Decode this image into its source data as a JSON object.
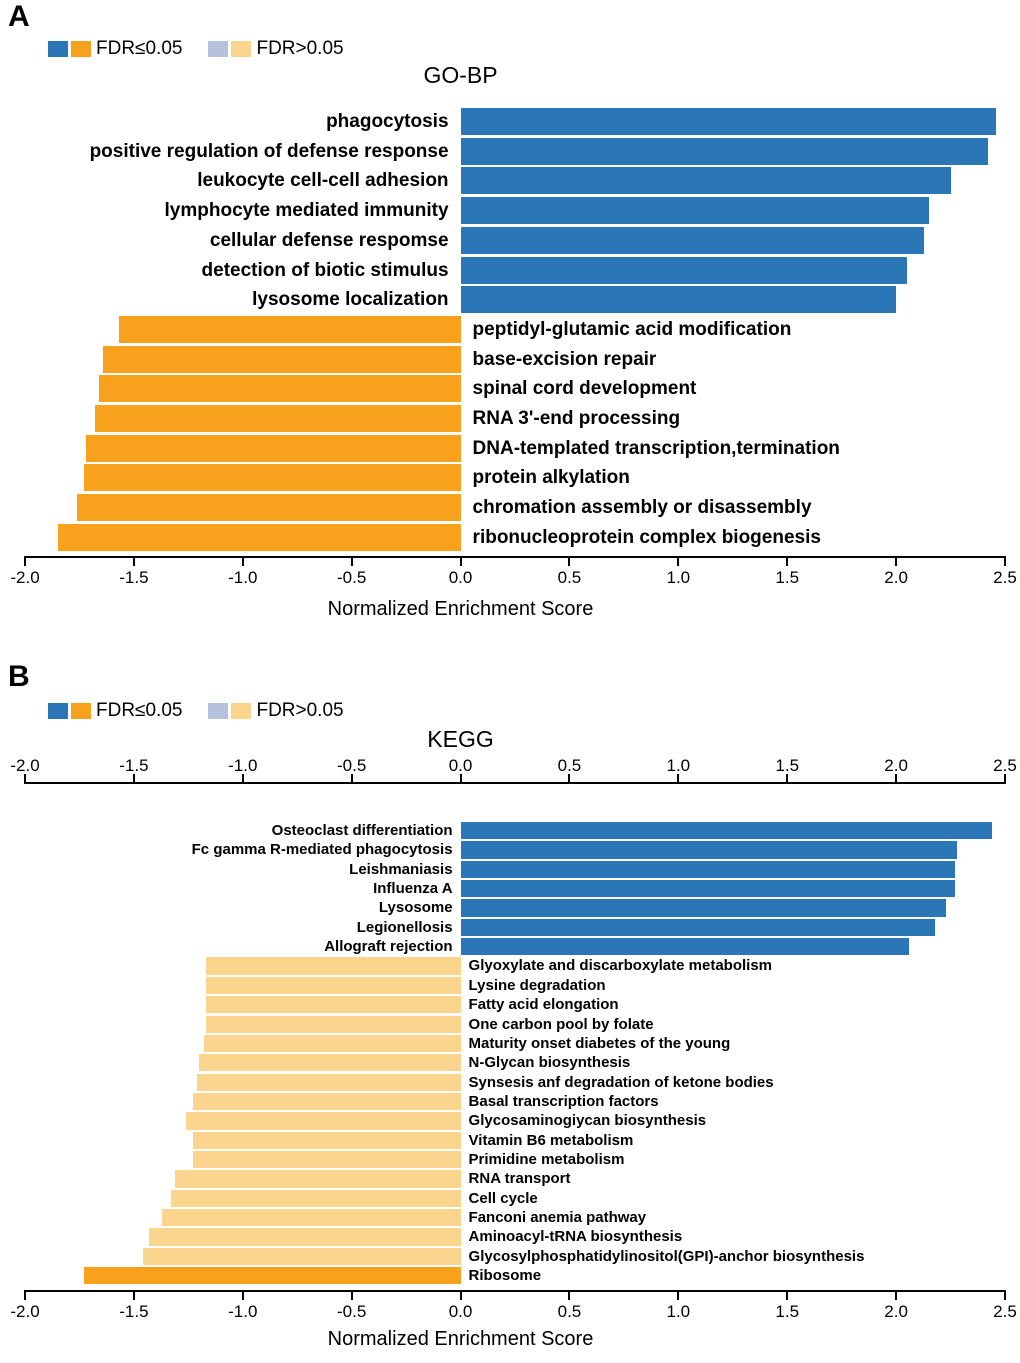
{
  "figure": {
    "panel_a_letter": "A",
    "panel_b_letter": "B"
  },
  "legend": {
    "sig_label": "FDR≤0.05",
    "nonsig_label": "FDR>0.05"
  },
  "colors": {
    "blue_sig": "#2b76b6",
    "orange_sig": "#f7a11c",
    "blue_nonsig": "#b6c2dd",
    "orange_nonsig": "#fbd58d",
    "axis": "#000000"
  },
  "chart_data": [
    {
      "type": "bar",
      "orientation": "horizontal",
      "panel": "A",
      "title": "GO-BP",
      "xlabel": "Normalized Enrichment Score",
      "ylabel": "",
      "xlim": [
        -2.0,
        2.5
      ],
      "xticks": [
        "-2.0",
        "-1.5",
        "-1.0",
        "-0.5",
        "0.0",
        "0.5",
        "1.0",
        "1.5",
        "2.0",
        "2.5"
      ],
      "legend_position": "top-left",
      "xaxis_position": "bottom",
      "bars": [
        {
          "label": "phagocytosis",
          "value": 2.46,
          "fdr": "≤0.05"
        },
        {
          "label": "positive regulation of defense response",
          "value": 2.42,
          "fdr": "≤0.05"
        },
        {
          "label": "leukocyte cell-cell adhesion",
          "value": 2.25,
          "fdr": "≤0.05"
        },
        {
          "label": "lymphocyte mediated immunity",
          "value": 2.15,
          "fdr": "≤0.05"
        },
        {
          "label": "cellular defense respomse",
          "value": 2.13,
          "fdr": "≤0.05"
        },
        {
          "label": "detection of biotic stimulus",
          "value": 2.05,
          "fdr": "≤0.05"
        },
        {
          "label": "lysosome localization",
          "value": 2.0,
          "fdr": "≤0.05"
        },
        {
          "label": "peptidyl-glutamic acid modification",
          "value": -1.57,
          "fdr": "≤0.05"
        },
        {
          "label": "base-excision repair",
          "value": -1.64,
          "fdr": "≤0.05"
        },
        {
          "label": "spinal cord development",
          "value": -1.66,
          "fdr": "≤0.05"
        },
        {
          "label": "RNA 3'-end processing",
          "value": -1.68,
          "fdr": "≤0.05"
        },
        {
          "label": "DNA-templated transcription,termination",
          "value": -1.72,
          "fdr": "≤0.05"
        },
        {
          "label": "protein alkylation",
          "value": -1.73,
          "fdr": "≤0.05"
        },
        {
          "label": "chromation assembly or disassembly",
          "value": -1.76,
          "fdr": "≤0.05"
        },
        {
          "label": "ribonucleoprotein complex biogenesis",
          "value": -1.85,
          "fdr": "≤0.05"
        }
      ]
    },
    {
      "type": "bar",
      "orientation": "horizontal",
      "panel": "B",
      "title": "KEGG",
      "xlabel": "Normalized Enrichment Score",
      "ylabel": "",
      "xlim": [
        -2.0,
        2.5
      ],
      "xticks": [
        "-2.0",
        "-1.5",
        "-1.0",
        "-0.5",
        "0.0",
        "0.5",
        "1.0",
        "1.5",
        "2.0",
        "2.5"
      ],
      "legend_position": "top-left",
      "xaxis_position": "top_and_bottom",
      "bars": [
        {
          "label": "Osteoclast differentiation",
          "value": 2.44,
          "fdr": "≤0.05"
        },
        {
          "label": "Fc gamma R-mediated phagocytosis",
          "value": 2.28,
          "fdr": "≤0.05"
        },
        {
          "label": "Leishmaniasis",
          "value": 2.27,
          "fdr": "≤0.05"
        },
        {
          "label": "Influenza A",
          "value": 2.27,
          "fdr": "≤0.05"
        },
        {
          "label": "Lysosome",
          "value": 2.23,
          "fdr": "≤0.05"
        },
        {
          "label": "Legionellosis",
          "value": 2.18,
          "fdr": "≤0.05"
        },
        {
          "label": "Allograft rejection",
          "value": 2.06,
          "fdr": "≤0.05"
        },
        {
          "label": "Glyoxylate and discarboxylate metabolism",
          "value": -1.17,
          "fdr": ">0.05"
        },
        {
          "label": "Lysine degradation",
          "value": -1.17,
          "fdr": ">0.05"
        },
        {
          "label": "Fatty acid elongation",
          "value": -1.17,
          "fdr": ">0.05"
        },
        {
          "label": "One carbon pool by folate",
          "value": -1.17,
          "fdr": ">0.05"
        },
        {
          "label": "Maturity onset diabetes of the young",
          "value": -1.18,
          "fdr": ">0.05"
        },
        {
          "label": "N-Glycan biosynthesis",
          "value": -1.2,
          "fdr": ">0.05"
        },
        {
          "label": "Synsesis anf degradation of ketone bodies",
          "value": -1.21,
          "fdr": ">0.05"
        },
        {
          "label": "Basal transcription factors",
          "value": -1.23,
          "fdr": ">0.05"
        },
        {
          "label": "Glycosaminogiycan biosynthesis",
          "value": -1.26,
          "fdr": ">0.05"
        },
        {
          "label": "Vitamin B6 metabolism",
          "value": -1.23,
          "fdr": ">0.05"
        },
        {
          "label": "Primidine metabolism",
          "value": -1.23,
          "fdr": ">0.05"
        },
        {
          "label": "RNA transport",
          "value": -1.31,
          "fdr": ">0.05"
        },
        {
          "label": "Cell cycle",
          "value": -1.33,
          "fdr": ">0.05"
        },
        {
          "label": "Fanconi anemia pathway",
          "value": -1.37,
          "fdr": ">0.05"
        },
        {
          "label": "Aminoacyl-tRNA biosynthesis",
          "value": -1.43,
          "fdr": ">0.05"
        },
        {
          "label": "Glycosylphosphatidylinositol(GPI)-anchor biosynthesis",
          "value": -1.46,
          "fdr": ">0.05"
        },
        {
          "label": "Ribosome",
          "value": -1.73,
          "fdr": "≤0.05"
        }
      ]
    }
  ]
}
